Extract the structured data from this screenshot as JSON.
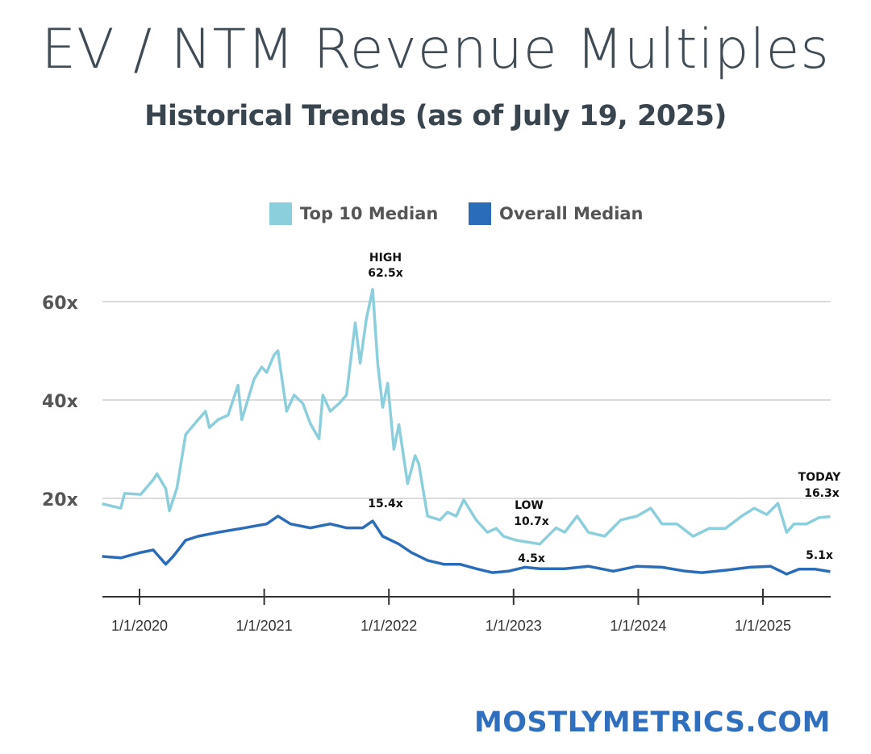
{
  "header": {
    "title": "EV / NTM Revenue Multiples",
    "subtitle": "Historical Trends (as of  July 19, 2025)"
  },
  "footer": {
    "brand": "MOSTLYMETRICS.COM"
  },
  "chart_data": {
    "type": "line",
    "title": "EV / NTM Revenue Multiples",
    "subtitle": "Historical Trends (as of  July 19, 2025)",
    "xlabel": "",
    "ylabel": "",
    "xlim": [
      2019.7,
      2025.54
    ],
    "ylim": [
      0,
      60
    ],
    "x_ticks": [
      {
        "value": 2020,
        "label": "1/1/2020"
      },
      {
        "value": 2021,
        "label": "1/1/2021"
      },
      {
        "value": 2022,
        "label": "1/1/2022"
      },
      {
        "value": 2023,
        "label": "1/1/2023"
      },
      {
        "value": 2024,
        "label": "1/1/2024"
      },
      {
        "value": 2025,
        "label": "1/1/2025"
      }
    ],
    "y_ticks": [
      {
        "value": 20,
        "label": "20x"
      },
      {
        "value": 40,
        "label": "40x"
      },
      {
        "value": 60,
        "label": "60x"
      }
    ],
    "grid": true,
    "legend_position": "top-center",
    "series": [
      {
        "name": "Top 10 Median",
        "color": "#8ccfdc",
        "x": [
          2019.7,
          2019.85,
          2019.88,
          2020.01,
          2020.11,
          2020.14,
          2020.21,
          2020.24,
          2020.3,
          2020.37,
          2020.47,
          2020.53,
          2020.56,
          2020.63,
          2020.71,
          2020.79,
          2020.82,
          2020.92,
          2020.98,
          2021.02,
          2021.08,
          2021.11,
          2021.18,
          2021.24,
          2021.31,
          2021.37,
          2021.44,
          2021.47,
          2021.53,
          2021.6,
          2021.66,
          2021.73,
          2021.77,
          2021.82,
          2021.87,
          2021.91,
          2021.95,
          2021.99,
          2022.04,
          2022.08,
          2022.15,
          2022.21,
          2022.24,
          2022.31,
          2022.41,
          2022.47,
          2022.54,
          2022.6,
          2022.7,
          2022.79,
          2022.86,
          2022.92,
          2023.02,
          2023.21,
          2023.34,
          2023.41,
          2023.51,
          2023.6,
          2023.73,
          2023.86,
          2023.99,
          2024.1,
          2024.19,
          2024.31,
          2024.44,
          2024.57,
          2024.7,
          2024.83,
          2024.93,
          2025.03,
          2025.12,
          2025.19,
          2025.25,
          2025.35,
          2025.45,
          2025.54
        ],
        "values": [
          18.9,
          18,
          21,
          20.8,
          23.8,
          25,
          22,
          17.5,
          22.1,
          33,
          36,
          37.7,
          34.4,
          36,
          36.9,
          43,
          36,
          44.3,
          46.7,
          45.6,
          49.2,
          50,
          37.7,
          41,
          39.3,
          35.2,
          32.1,
          41,
          37.7,
          39.3,
          41,
          55.7,
          47.5,
          56.6,
          62.5,
          47.5,
          38.5,
          43.4,
          30,
          35,
          23,
          28.7,
          27,
          16.4,
          15.6,
          17.2,
          16.4,
          19.7,
          15.6,
          13.1,
          13.9,
          12.3,
          11.5,
          10.7,
          14,
          13.1,
          16.4,
          13.1,
          12.3,
          15.6,
          16.4,
          18,
          14.8,
          14.8,
          12.3,
          13.9,
          13.9,
          16.4,
          18,
          16.7,
          19,
          13.1,
          14.8,
          14.8,
          16.1,
          16.3
        ]
      },
      {
        "name": "Overall Median",
        "color": "#2b6cb8",
        "x": [
          2019.7,
          2019.85,
          2020.01,
          2020.11,
          2020.21,
          2020.27,
          2020.37,
          2020.47,
          2020.63,
          2020.82,
          2021.02,
          2021.11,
          2021.21,
          2021.37,
          2021.53,
          2021.66,
          2021.79,
          2021.87,
          2021.95,
          2022.08,
          2022.18,
          2022.31,
          2022.44,
          2022.57,
          2022.7,
          2022.83,
          2022.96,
          2023.09,
          2023.21,
          2023.41,
          2023.6,
          2023.8,
          2023.99,
          2024.19,
          2024.38,
          2024.51,
          2024.7,
          2024.9,
          2025.06,
          2025.19,
          2025.29,
          2025.42,
          2025.54
        ],
        "values": [
          8.2,
          7.9,
          9,
          9.5,
          6.6,
          8.2,
          11.5,
          12.3,
          13.1,
          13.9,
          14.8,
          16.4,
          14.8,
          14,
          14.8,
          14,
          14,
          15.4,
          12.3,
          10.7,
          9,
          7.4,
          6.6,
          6.6,
          5.7,
          4.9,
          5.2,
          6,
          5.7,
          5.7,
          6.2,
          5.2,
          6.2,
          6,
          5.2,
          4.9,
          5.4,
          6,
          6.2,
          4.6,
          5.6,
          5.6,
          5.1
        ]
      }
    ],
    "annotations": [
      {
        "series": "Top 10 Median",
        "x": 2021.87,
        "y": 62.5,
        "label": "HIGH",
        "value": "62.5x"
      },
      {
        "series": "Overall Median",
        "x": 2021.87,
        "y": 15.4,
        "label": "",
        "value": "15.4x"
      },
      {
        "series": "Top 10 Median",
        "x": 2023.02,
        "y": 10.7,
        "label": "LOW",
        "value": "10.7x"
      },
      {
        "series": "Overall Median",
        "x": 2023.02,
        "y": 4.5,
        "label": "",
        "value": "4.5x"
      },
      {
        "series": "Top 10 Median",
        "x": 2025.54,
        "y": 16.3,
        "label": "TODAY",
        "value": "16.3x"
      },
      {
        "series": "Overall Median",
        "x": 2025.54,
        "y": 5.1,
        "label": "",
        "value": "5.1x"
      }
    ]
  }
}
